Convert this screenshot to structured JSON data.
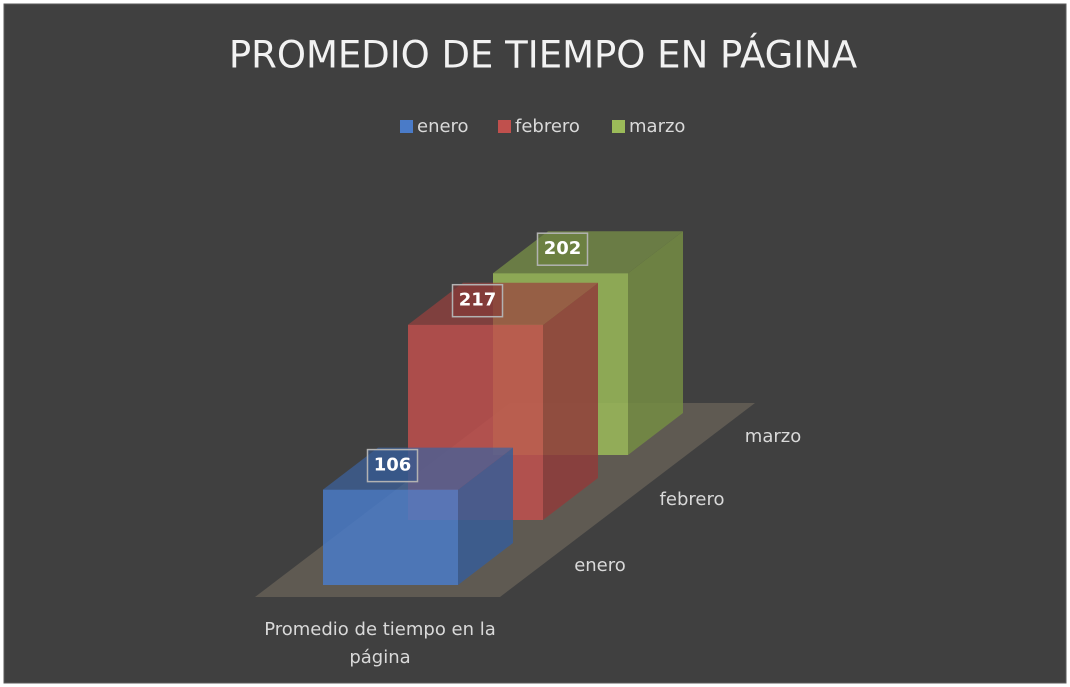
{
  "chart_data": {
    "type": "bar3d",
    "title": "PROMEDIO DE TIEMPO EN PÁGINA",
    "categories": [
      "Promedio de tiempo en la página"
    ],
    "series": [
      {
        "name": "enero",
        "color": "#4a7bc8",
        "values": [
          106
        ]
      },
      {
        "name": "febrero",
        "color": "#c0504d",
        "values": [
          217
        ]
      },
      {
        "name": "marzo",
        "color": "#9bbb59",
        "values": [
          202
        ]
      }
    ],
    "legend": "top"
  }
}
